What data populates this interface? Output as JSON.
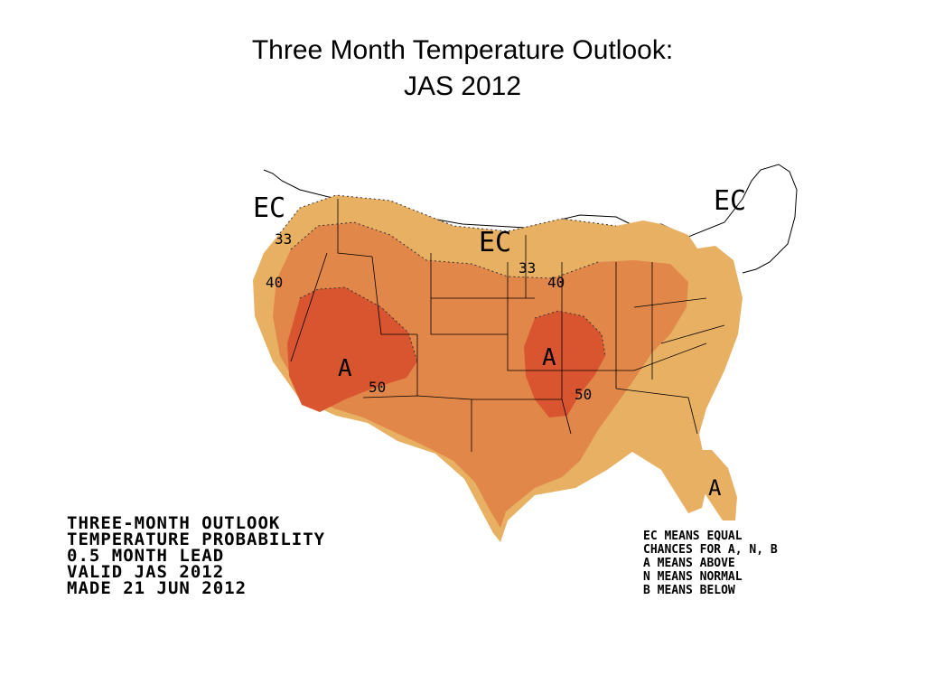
{
  "slide": {
    "title_line1": "Three Month Temperature Outlook:",
    "title_line2": "JAS 2012"
  },
  "map": {
    "region": "United States",
    "colors": {
      "above_33": "#E8B063",
      "above_40": "#E2874A",
      "above_50": "#D9552F",
      "boundary_line": "#000000",
      "background": "#FFFFFF"
    },
    "region_labels": {
      "ec_northwest": "EC",
      "ec_north_central": "EC",
      "ec_northeast": "EC",
      "a_west": "A",
      "a_midwest": "A",
      "a_florida": "A"
    },
    "contour_labels": {
      "c33_west": "33",
      "c40_west": "40",
      "c50_southwest": "50",
      "c33_lakes": "33",
      "c40_lakes": "40",
      "c50_south": "50"
    }
  },
  "info": {
    "line1": "THREE-MONTH OUTLOOK",
    "line2": "TEMPERATURE PROBABILITY",
    "line3": "0.5 MONTH LEAD",
    "line4": "VALID JAS 2012",
    "line5": "MADE 21 JUN 2012"
  },
  "legend": {
    "line1": "EC MEANS EQUAL",
    "line2": "CHANCES FOR A, N, B",
    "line3": "A MEANS ABOVE",
    "line4": "N MEANS NORMAL",
    "line5": "B MEANS BELOW"
  }
}
